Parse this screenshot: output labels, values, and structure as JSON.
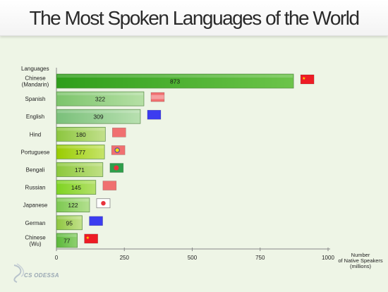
{
  "title": "The Most Spoken Languages of the World",
  "logo_text": "CS ODESSA",
  "chart_data": {
    "type": "bar",
    "orientation": "horizontal",
    "title": "The Most Spoken Languages of the World",
    "ylabel": "Languages",
    "xlabel": "Number of Native Speakers (millions)",
    "xlabel_lines": [
      "Number",
      "of Native Speakers",
      "(millions)"
    ],
    "xlim": [
      0,
      1000
    ],
    "xticks": [
      0,
      250,
      500,
      750,
      1000
    ],
    "grid": false,
    "categories": [
      [
        "Chinese",
        "(Mandarin)"
      ],
      [
        "Spanish"
      ],
      [
        "English"
      ],
      [
        "Hind"
      ],
      [
        "Portuguese"
      ],
      [
        "Bengali"
      ],
      [
        "Russian"
      ],
      [
        "Japanese"
      ],
      [
        "German"
      ],
      [
        "Chinese",
        "(Wu)"
      ]
    ],
    "values": [
      873,
      322,
      309,
      180,
      177,
      171,
      145,
      122,
      95,
      77
    ],
    "bar_colors": [
      [
        "#2e9e1a",
        "#6cc44a"
      ],
      [
        "#7cc46a",
        "#b6e0a6"
      ],
      [
        "#7ac07a",
        "#b8e0b0"
      ],
      [
        "#8cc63f",
        "#c2e08c"
      ],
      [
        "#99cc00",
        "#c6e46a"
      ],
      [
        "#8cc83c",
        "#c0e084"
      ],
      [
        "#7ed321",
        "#b4e06a"
      ],
      [
        "#7cc850",
        "#b4e090"
      ],
      [
        "#8ec640",
        "#c4e28c"
      ],
      [
        "#5cb83a",
        "#8ed070"
      ]
    ],
    "flags": [
      "china",
      "spain",
      "uk",
      "india",
      "portugal",
      "bangladesh",
      "russia",
      "japan",
      "germany",
      "china"
    ]
  }
}
